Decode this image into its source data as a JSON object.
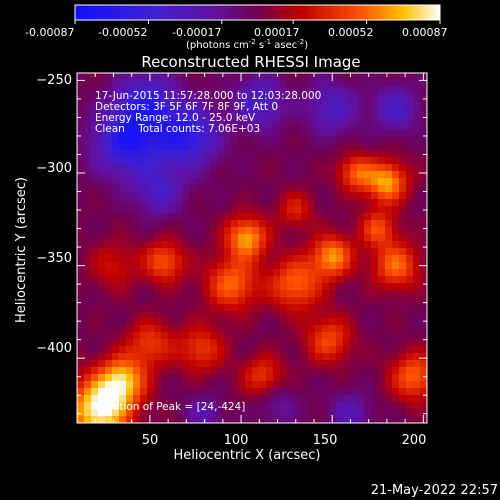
{
  "chart_data": {
    "type": "heatmap",
    "title": "Reconstructed RHESSI Image",
    "xlabel": "Heliocentric X (arcsec)",
    "ylabel": "Heliocentric Y (arcsec)",
    "xlim": [
      10,
      202
    ],
    "ylim": [
      -435,
      -246
    ],
    "x_ticks": [
      50,
      100,
      150,
      200
    ],
    "y_ticks": [
      -250,
      -300,
      -350,
      -400
    ],
    "colorbar": {
      "range": [
        -0.00087,
        0.00087
      ],
      "ticks": [
        "-0.00087",
        "-0.00052",
        "-0.00017",
        "0.00017",
        "0.00052",
        "0.00087"
      ],
      "unit_main": "(photons cm",
      "unit_exp1": "-2",
      "unit_s": " s",
      "unit_exp2": "-1",
      "unit_asec": " asec",
      "unit_exp3": "-2",
      "unit_close": ")"
    },
    "annotations": {
      "time": "17-Jun-2015 11:57:28.000 to 12:03:28.000",
      "detectors": "Detectors: 3F 5F 6F 7F 8F 9F, Att 0",
      "energy": "Energy Range: 12.0 - 25.0 keV",
      "clean": "Clean    Total counts: 7.06E+03",
      "peak": "Location of Peak = [24,-424]"
    },
    "peak": [
      24,
      -424
    ],
    "blobs": [
      {
        "x": 22,
        "y": -428,
        "amp": 1.0,
        "s": 12
      },
      {
        "x": 35,
        "y": -412,
        "amp": 0.75,
        "s": 9
      },
      {
        "x": 50,
        "y": -392,
        "amp": 0.45,
        "s": 9
      },
      {
        "x": 58,
        "y": -348,
        "amp": 0.55,
        "s": 8
      },
      {
        "x": 78,
        "y": -395,
        "amp": 0.45,
        "s": 9
      },
      {
        "x": 95,
        "y": -360,
        "amp": 0.6,
        "s": 10
      },
      {
        "x": 103,
        "y": -335,
        "amp": 0.75,
        "s": 8
      },
      {
        "x": 112,
        "y": -410,
        "amp": 0.45,
        "s": 8
      },
      {
        "x": 130,
        "y": -360,
        "amp": 0.6,
        "s": 10
      },
      {
        "x": 148,
        "y": -390,
        "amp": 0.5,
        "s": 9
      },
      {
        "x": 150,
        "y": -345,
        "amp": 0.7,
        "s": 8
      },
      {
        "x": 163,
        "y": -300,
        "amp": 0.55,
        "s": 7
      },
      {
        "x": 180,
        "y": -305,
        "amp": 0.75,
        "s": 8
      },
      {
        "x": 185,
        "y": -350,
        "amp": 0.6,
        "s": 9
      },
      {
        "x": 195,
        "y": -410,
        "amp": 0.6,
        "s": 9
      },
      {
        "x": 175,
        "y": -330,
        "amp": 0.5,
        "s": 7
      },
      {
        "x": 30,
        "y": -350,
        "amp": 0.3,
        "s": 9
      },
      {
        "x": 130,
        "y": -320,
        "amp": 0.35,
        "s": 7
      },
      {
        "x": 38,
        "y": -283,
        "amp": -0.8,
        "s": 13
      },
      {
        "x": 70,
        "y": -280,
        "amp": -0.75,
        "s": 12
      },
      {
        "x": 48,
        "y": -262,
        "amp": -0.6,
        "s": 11
      },
      {
        "x": 110,
        "y": -262,
        "amp": -0.5,
        "s": 10
      },
      {
        "x": 150,
        "y": -265,
        "amp": -0.45,
        "s": 10
      },
      {
        "x": 185,
        "y": -265,
        "amp": -0.45,
        "s": 9
      },
      {
        "x": 55,
        "y": -310,
        "amp": -0.45,
        "s": 9
      },
      {
        "x": 120,
        "y": -425,
        "amp": -0.25,
        "s": 8
      },
      {
        "x": 160,
        "y": -430,
        "amp": -0.35,
        "s": 8
      },
      {
        "x": 80,
        "y": -430,
        "amp": -0.3,
        "s": 7
      }
    ]
  },
  "footer_date": "21-May-2022 22:57"
}
